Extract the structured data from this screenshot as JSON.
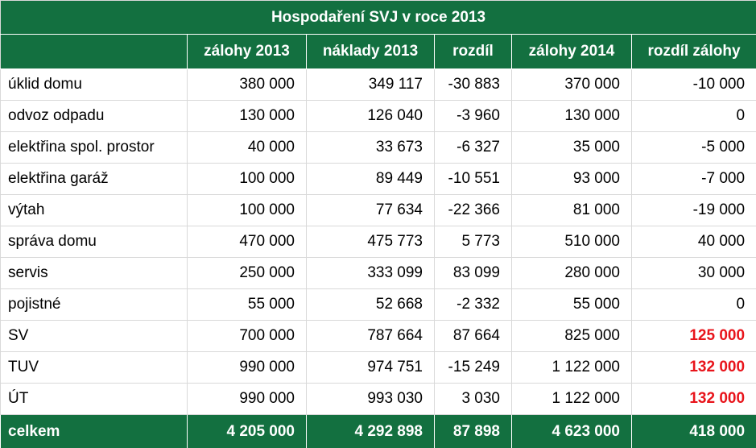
{
  "title": "Hospodaření SVJ v roce 2013",
  "columns": [
    "",
    "zálohy 2013",
    "náklady 2013",
    "rozdíl",
    "zálohy 2014",
    "rozdíl zálohy"
  ],
  "rows": [
    {
      "label": "úklid domu",
      "zalohy_2013": "380 000",
      "naklady_2013": "349 117",
      "rozdil": "-30 883",
      "zalohy_2014": "370 000",
      "rozdil_zalohy": "-10 000",
      "highlight": false
    },
    {
      "label": "odvoz odpadu",
      "zalohy_2013": "130 000",
      "naklady_2013": "126 040",
      "rozdil": "-3 960",
      "zalohy_2014": "130 000",
      "rozdil_zalohy": "0",
      "highlight": false
    },
    {
      "label": "elektřina spol. prostor",
      "zalohy_2013": "40 000",
      "naklady_2013": "33 673",
      "rozdil": "-6 327",
      "zalohy_2014": "35 000",
      "rozdil_zalohy": "-5 000",
      "highlight": false
    },
    {
      "label": "elektřina garáž",
      "zalohy_2013": "100 000",
      "naklady_2013": "89 449",
      "rozdil": "-10 551",
      "zalohy_2014": "93 000",
      "rozdil_zalohy": "-7 000",
      "highlight": false
    },
    {
      "label": "výtah",
      "zalohy_2013": "100 000",
      "naklady_2013": "77 634",
      "rozdil": "-22 366",
      "zalohy_2014": "81 000",
      "rozdil_zalohy": "-19 000",
      "highlight": false
    },
    {
      "label": "správa domu",
      "zalohy_2013": "470 000",
      "naklady_2013": "475 773",
      "rozdil": "5 773",
      "zalohy_2014": "510 000",
      "rozdil_zalohy": "40 000",
      "highlight": false
    },
    {
      "label": "servis",
      "zalohy_2013": "250 000",
      "naklady_2013": "333 099",
      "rozdil": "83 099",
      "zalohy_2014": "280 000",
      "rozdil_zalohy": "30 000",
      "highlight": false
    },
    {
      "label": "pojistné",
      "zalohy_2013": "55 000",
      "naklady_2013": "52 668",
      "rozdil": "-2 332",
      "zalohy_2014": "55 000",
      "rozdil_zalohy": "0",
      "highlight": false
    },
    {
      "label": "SV",
      "zalohy_2013": "700 000",
      "naklady_2013": "787 664",
      "rozdil": "87 664",
      "zalohy_2014": "825 000",
      "rozdil_zalohy": "125 000",
      "highlight": true
    },
    {
      "label": "TUV",
      "zalohy_2013": "990 000",
      "naklady_2013": "974 751",
      "rozdil": "-15 249",
      "zalohy_2014": "1 122 000",
      "rozdil_zalohy": "132 000",
      "highlight": true
    },
    {
      "label": "ÚT",
      "zalohy_2013": "990 000",
      "naklady_2013": "993 030",
      "rozdil": "3 030",
      "zalohy_2014": "1 122 000",
      "rozdil_zalohy": "132 000",
      "highlight": true
    }
  ],
  "total": {
    "label": "celkem",
    "zalohy_2013": "4 205 000",
    "naklady_2013": "4 292 898",
    "rozdil": "87 898",
    "zalohy_2014": "4 623 000",
    "rozdil_zalohy": "418 000"
  },
  "colors": {
    "header_bg": "#137040",
    "header_text": "#ffffff",
    "highlight_text": "#e8141b",
    "grid": "#d9d9d9"
  }
}
